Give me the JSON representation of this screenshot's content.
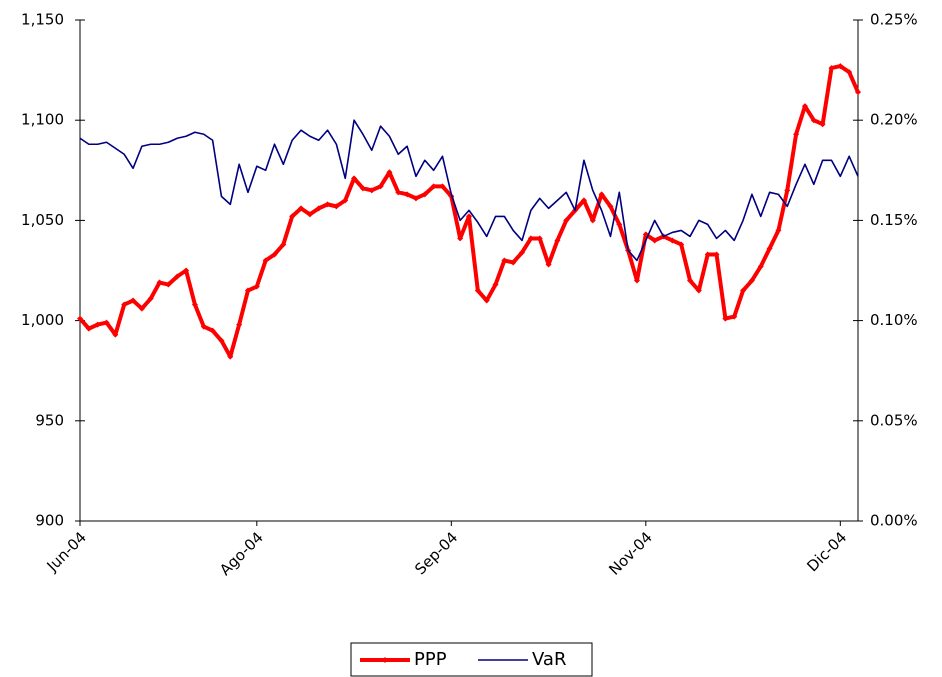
{
  "chart_data": {
    "type": "line",
    "categories": [
      "Jun-04",
      null,
      null,
      null,
      null,
      null,
      null,
      null,
      null,
      null,
      null,
      null,
      null,
      null,
      null,
      null,
      null,
      null,
      null,
      null,
      "Ago-04",
      null,
      null,
      null,
      null,
      null,
      null,
      null,
      null,
      null,
      null,
      null,
      null,
      null,
      null,
      null,
      null,
      null,
      null,
      null,
      null,
      null,
      "Sep-04",
      null,
      null,
      null,
      null,
      null,
      null,
      null,
      null,
      null,
      null,
      null,
      null,
      null,
      null,
      null,
      null,
      null,
      null,
      null,
      null,
      null,
      "Nov-04",
      null,
      null,
      null,
      null,
      null,
      null,
      null,
      null,
      null,
      null,
      null,
      null,
      null,
      null,
      null,
      null,
      null,
      null,
      null,
      null,
      null,
      "Dic-04",
      null,
      null
    ],
    "series": [
      {
        "name": "PPP",
        "color": "#ff0000",
        "values": [
          1001,
          996,
          998,
          999,
          993,
          1008,
          1010,
          1006,
          1011,
          1019,
          1018,
          1022,
          1025,
          1008,
          997,
          995,
          990,
          982,
          998,
          1015,
          1017,
          1030,
          1033,
          1038,
          1052,
          1056,
          1053,
          1056,
          1058,
          1057,
          1060,
          1071,
          1066,
          1065,
          1067,
          1074,
          1064,
          1063,
          1061,
          1063,
          1067,
          1067,
          1062,
          1041,
          1052,
          1015,
          1010,
          1018,
          1030,
          1029,
          1034,
          1041,
          1041,
          1028,
          1040,
          1050,
          1055,
          1060,
          1050,
          1063,
          1057,
          1048,
          1035,
          1020,
          1043,
          1040,
          1042,
          1040,
          1038,
          1020,
          1015,
          1033,
          1033,
          1001,
          1002,
          1015,
          1020,
          1027,
          1036,
          1045,
          1065,
          1093,
          1107,
          1100,
          1098,
          1126,
          1127,
          1124,
          1114
        ]
      },
      {
        "name": "VaR",
        "color": "#000080",
        "axis": "y2",
        "values": [
          0.191,
          0.188,
          0.188,
          0.189,
          0.186,
          0.183,
          0.176,
          0.187,
          0.188,
          0.188,
          0.189,
          0.191,
          0.192,
          0.194,
          0.193,
          0.19,
          0.162,
          0.158,
          0.178,
          0.164,
          0.177,
          0.175,
          0.188,
          0.178,
          0.19,
          0.195,
          0.192,
          0.19,
          0.195,
          0.188,
          0.171,
          0.2,
          0.193,
          0.185,
          0.197,
          0.192,
          0.183,
          0.187,
          0.172,
          0.18,
          0.175,
          0.182,
          0.163,
          0.15,
          0.155,
          0.149,
          0.142,
          0.152,
          0.152,
          0.145,
          0.14,
          0.155,
          0.161,
          0.156,
          0.16,
          0.164,
          0.155,
          0.18,
          0.165,
          0.155,
          0.142,
          0.164,
          0.135,
          0.13,
          0.14,
          0.15,
          0.142,
          0.144,
          0.145,
          0.142,
          0.15,
          0.148,
          0.141,
          0.145,
          0.14,
          0.15,
          0.163,
          0.152,
          0.164,
          0.163,
          0.157,
          0.168,
          0.178,
          0.168,
          0.18,
          0.18,
          0.172,
          0.182,
          0.172
        ]
      }
    ],
    "ylim": [
      900,
      1150
    ],
    "yticks": [
      900,
      950,
      {
        "value": 1000,
        "label": "1,000"
      },
      {
        "value": 1050,
        "label": "1,050"
      },
      {
        "value": 1100,
        "label": "1,100"
      },
      {
        "value": 1150,
        "label": "1,150"
      }
    ],
    "y2lim": [
      0,
      0.25
    ],
    "y2ticks": [
      {
        "value": 0,
        "label": "0.00%"
      },
      {
        "value": 0.05,
        "label": "0.05%"
      },
      {
        "value": 0.1,
        "label": "0.10%"
      },
      {
        "value": 0.15,
        "label": "0.15%"
      },
      {
        "value": 0.2,
        "label": "0.20%"
      },
      {
        "value": 0.25,
        "label": "0.25%"
      }
    ],
    "grid": false,
    "legend": "bottom"
  }
}
